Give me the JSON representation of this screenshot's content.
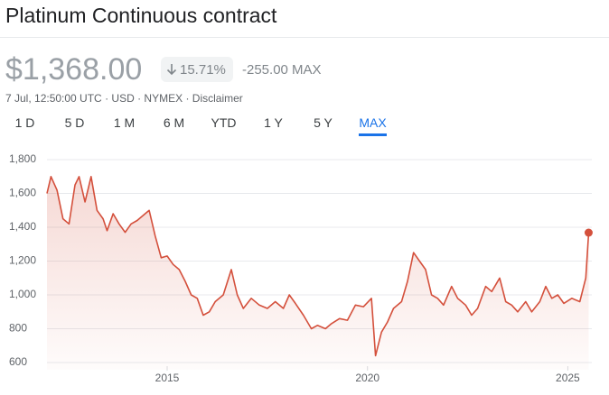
{
  "header": {
    "title": "Platinum Continuous contract"
  },
  "quote": {
    "price": "$1,368.00",
    "change_percent": "15.71%",
    "change": "-255.00",
    "period": "MAX",
    "meta": [
      "7 Jul, 12:50:00 UTC",
      "USD",
      "NYMEX",
      "Disclaimer"
    ]
  },
  "tabs": [
    {
      "label": "1 D"
    },
    {
      "label": "5 D"
    },
    {
      "label": "1 M"
    },
    {
      "label": "6 M"
    },
    {
      "label": "YTD"
    },
    {
      "label": "1 Y"
    },
    {
      "label": "5 Y"
    },
    {
      "label": "MAX",
      "selected": true
    }
  ],
  "chart_data": {
    "type": "line",
    "x": [
      2012.0,
      2012.1,
      2012.25,
      2012.4,
      2012.55,
      2012.7,
      2012.8,
      2012.95,
      2013.1,
      2013.25,
      2013.4,
      2013.5,
      2013.65,
      2013.8,
      2013.95,
      2014.1,
      2014.25,
      2014.45,
      2014.55,
      2014.7,
      2014.85,
      2015.0,
      2015.15,
      2015.3,
      2015.45,
      2015.6,
      2015.75,
      2015.9,
      2016.05,
      2016.2,
      2016.4,
      2016.6,
      2016.75,
      2016.9,
      2017.1,
      2017.3,
      2017.5,
      2017.7,
      2017.9,
      2018.05,
      2018.2,
      2018.4,
      2018.6,
      2018.75,
      2018.95,
      2019.1,
      2019.3,
      2019.5,
      2019.7,
      2019.9,
      2020.1,
      2020.2,
      2020.35,
      2020.5,
      2020.65,
      2020.85,
      2021.0,
      2021.15,
      2021.3,
      2021.45,
      2021.6,
      2021.75,
      2021.9,
      2022.1,
      2022.25,
      2022.45,
      2022.6,
      2022.75,
      2022.95,
      2023.1,
      2023.3,
      2023.45,
      2023.6,
      2023.75,
      2023.95,
      2024.1,
      2024.3,
      2024.45,
      2024.6,
      2024.75,
      2024.9,
      2025.1,
      2025.3,
      2025.45,
      2025.52
    ],
    "series": [
      {
        "name": "Platinum",
        "color": "#d4503c",
        "values": [
          1600,
          1700,
          1620,
          1450,
          1420,
          1650,
          1700,
          1550,
          1700,
          1500,
          1450,
          1380,
          1480,
          1420,
          1370,
          1420,
          1440,
          1480,
          1500,
          1350,
          1220,
          1230,
          1180,
          1150,
          1080,
          1000,
          980,
          880,
          900,
          960,
          1000,
          1150,
          1000,
          920,
          980,
          940,
          920,
          960,
          920,
          1000,
          950,
          880,
          800,
          820,
          800,
          830,
          860,
          850,
          940,
          930,
          980,
          640,
          780,
          840,
          920,
          960,
          1080,
          1250,
          1200,
          1150,
          1000,
          980,
          940,
          1050,
          980,
          940,
          880,
          920,
          1050,
          1020,
          1100,
          960,
          940,
          900,
          960,
          900,
          960,
          1050,
          980,
          1000,
          950,
          980,
          960,
          1100,
          1368
        ]
      }
    ],
    "xlim": [
      2012.0,
      2025.6
    ],
    "xticks": [
      2015,
      2020,
      2025
    ],
    "ylim": [
      600,
      1800
    ],
    "yticks": [
      {
        "value": 600,
        "label": "600"
      },
      {
        "value": 800,
        "label": "800"
      },
      {
        "value": 1000,
        "label": "1,000"
      },
      {
        "value": 1200,
        "label": "1,200"
      },
      {
        "value": 1400,
        "label": "1,400"
      },
      {
        "value": 1600,
        "label": "1,600"
      },
      {
        "value": 1800,
        "label": "1,800"
      }
    ],
    "grid": true
  }
}
